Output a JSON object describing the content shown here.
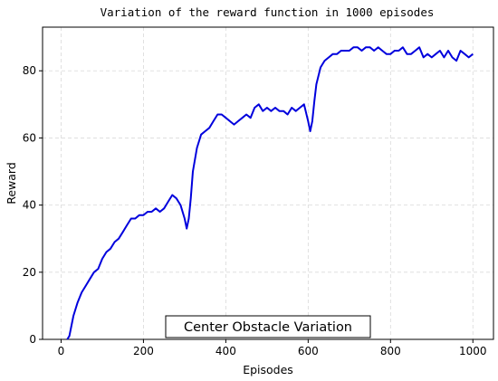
{
  "chart_data": {
    "type": "line",
    "title": "Variation of the reward function in 1000 episodes",
    "xlabel": "Episodes",
    "ylabel": "Reward",
    "xlim": [
      -45,
      1050
    ],
    "ylim": [
      0,
      93
    ],
    "xticks": [
      0,
      200,
      400,
      600,
      800,
      1000
    ],
    "yticks": [
      0,
      20,
      40,
      60,
      80
    ],
    "grid": true,
    "annotation": "Center Obstacle Variation",
    "series": [
      {
        "color": "#0000dd",
        "x": [
          15,
          20,
          30,
          40,
          50,
          60,
          70,
          80,
          90,
          100,
          110,
          120,
          130,
          140,
          150,
          160,
          170,
          180,
          190,
          200,
          210,
          220,
          230,
          240,
          250,
          260,
          270,
          280,
          290,
          300,
          305,
          310,
          315,
          320,
          330,
          340,
          350,
          360,
          370,
          380,
          390,
          400,
          410,
          420,
          430,
          440,
          450,
          460,
          470,
          480,
          490,
          500,
          510,
          520,
          530,
          540,
          550,
          560,
          570,
          580,
          590,
          600,
          605,
          610,
          615,
          620,
          630,
          640,
          650,
          660,
          670,
          680,
          690,
          700,
          710,
          720,
          730,
          740,
          750,
          760,
          770,
          780,
          790,
          800,
          810,
          820,
          830,
          840,
          850,
          860,
          870,
          880,
          890,
          900,
          910,
          920,
          930,
          940,
          950,
          960,
          970,
          980,
          990,
          1000
        ],
        "y": [
          0,
          1,
          7,
          11,
          14,
          16,
          18,
          20,
          21,
          24,
          26,
          27,
          29,
          30,
          32,
          34,
          36,
          36,
          37,
          37,
          38,
          38,
          39,
          38,
          39,
          41,
          43,
          42,
          40,
          36,
          33,
          36,
          42,
          50,
          57,
          61,
          62,
          63,
          65,
          67,
          67,
          66,
          65,
          64,
          65,
          66,
          67,
          66,
          69,
          70,
          68,
          69,
          68,
          69,
          68,
          68,
          67,
          69,
          68,
          69,
          70,
          65,
          62,
          65,
          71,
          76,
          81,
          83,
          84,
          85,
          85,
          86,
          86,
          86,
          87,
          87,
          86,
          87,
          87,
          86,
          87,
          86,
          85,
          85,
          86,
          86,
          87,
          85,
          85,
          86,
          87,
          84,
          85,
          84,
          85,
          86,
          84,
          86,
          84,
          83,
          86,
          85,
          84,
          85
        ]
      }
    ]
  }
}
